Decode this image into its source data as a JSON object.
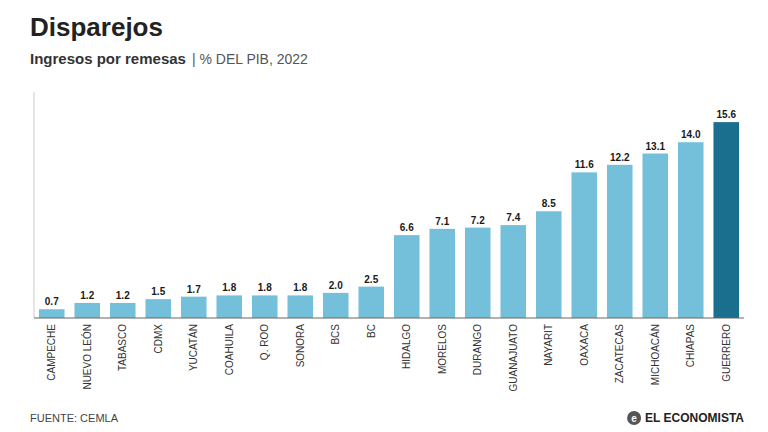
{
  "chart_data": {
    "type": "bar",
    "title": "Disparejos",
    "subtitle": "Ingresos por remesas",
    "annotations": [
      "| % DEL PIB, 2022",
      "FUENTE: CEMLA",
      "e",
      "EL ECONOMISTA"
    ],
    "categories": [
      "CAMPECHE",
      "NUEVO LEÓN",
      "TABASCO",
      "CDMX",
      "YUCATÁN",
      "COAHUILA",
      "Q. ROO",
      "SONORA",
      "BCS",
      "BC",
      "HIDALGO",
      "MORELOS",
      "DURANGO",
      "GUANAJUATO",
      "NAYARIT",
      "OAXACA",
      "ZACATECAS",
      "MICHOACÁN",
      "CHIAPAS",
      "GUERRERO"
    ],
    "values": [
      0.7,
      1.2,
      1.2,
      1.5,
      1.7,
      1.8,
      1.8,
      1.8,
      2.0,
      2.5,
      6.6,
      7.1,
      7.2,
      7.4,
      8.5,
      11.6,
      12.2,
      13.1,
      14.0,
      15.6
    ],
    "value_labels": [
      "0.7",
      "1.2",
      "1.2",
      "1.5",
      "1.7",
      "1.8",
      "1.8",
      "1.8",
      "2.0",
      "2.5",
      "6.6",
      "7.1",
      "7.2",
      "7.4",
      "8.5",
      "11.6",
      "12.2",
      "13.1",
      "14.0",
      "15.6"
    ],
    "colors": [
      "#74C0DA",
      "#74C0DA",
      "#74C0DA",
      "#74C0DA",
      "#74C0DA",
      "#74C0DA",
      "#74C0DA",
      "#74C0DA",
      "#74C0DA",
      "#74C0DA",
      "#74C0DA",
      "#74C0DA",
      "#74C0DA",
      "#74C0DA",
      "#74C0DA",
      "#74C0DA",
      "#74C0DA",
      "#74C0DA",
      "#74C0DA",
      "#1A6E8E"
    ],
    "ylim": [
      0,
      18
    ],
    "grid": false,
    "data_labels": true,
    "tick_labels": "x"
  }
}
